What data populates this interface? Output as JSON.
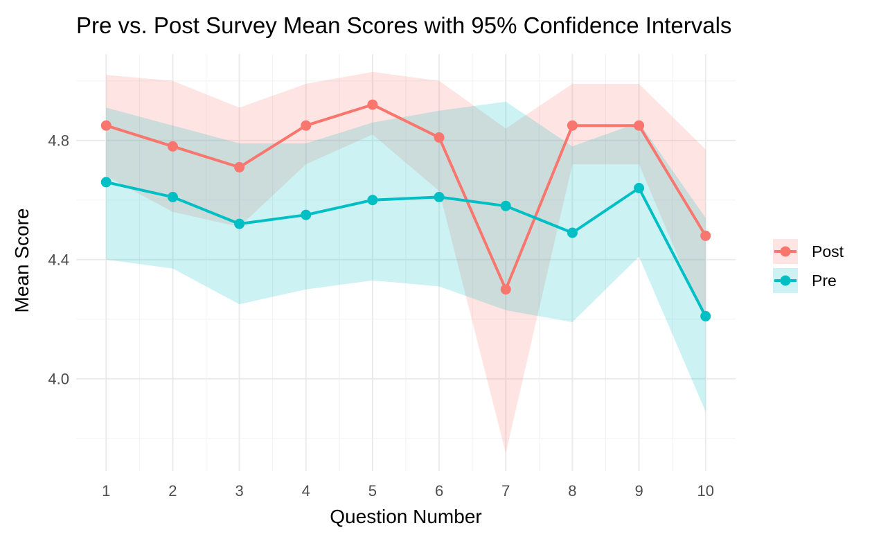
{
  "chart_data": {
    "type": "line",
    "title": "Pre vs. Post Survey Mean Scores with 95% Confidence Intervals",
    "xlabel": "Question Number",
    "ylabel": "Mean Score",
    "x": [
      1,
      2,
      3,
      4,
      5,
      6,
      7,
      8,
      9,
      10
    ],
    "x_ticks": [
      "1",
      "2",
      "3",
      "4",
      "5",
      "6",
      "7",
      "8",
      "9",
      "10"
    ],
    "y_ticks": [
      "4.0",
      "4.4",
      "4.8"
    ],
    "y_tick_values": [
      4.0,
      4.4,
      4.8
    ],
    "ylim": [
      3.69,
      5.09
    ],
    "xlim": [
      0.55,
      10.45
    ],
    "grid": true,
    "legend_position": "right",
    "series": [
      {
        "name": "Post",
        "color": "#F8766D",
        "values": [
          4.85,
          4.78,
          4.71,
          4.85,
          4.92,
          4.81,
          4.3,
          4.85,
          4.85,
          4.48
        ],
        "ci_lower": [
          4.68,
          4.56,
          4.51,
          4.72,
          4.82,
          4.63,
          3.75,
          4.72,
          4.72,
          4.19
        ],
        "ci_upper": [
          5.02,
          5.0,
          4.91,
          4.99,
          5.03,
          5.0,
          4.84,
          4.99,
          4.99,
          4.77
        ]
      },
      {
        "name": "Pre",
        "color": "#00BFC4",
        "values": [
          4.66,
          4.61,
          4.52,
          4.55,
          4.6,
          4.61,
          4.58,
          4.49,
          4.64,
          4.21
        ],
        "ci_lower": [
          4.4,
          4.37,
          4.25,
          4.3,
          4.33,
          4.31,
          4.23,
          4.19,
          4.41,
          3.89
        ],
        "ci_upper": [
          4.91,
          4.85,
          4.79,
          4.79,
          4.86,
          4.9,
          4.93,
          4.78,
          4.86,
          4.54
        ]
      }
    ]
  }
}
